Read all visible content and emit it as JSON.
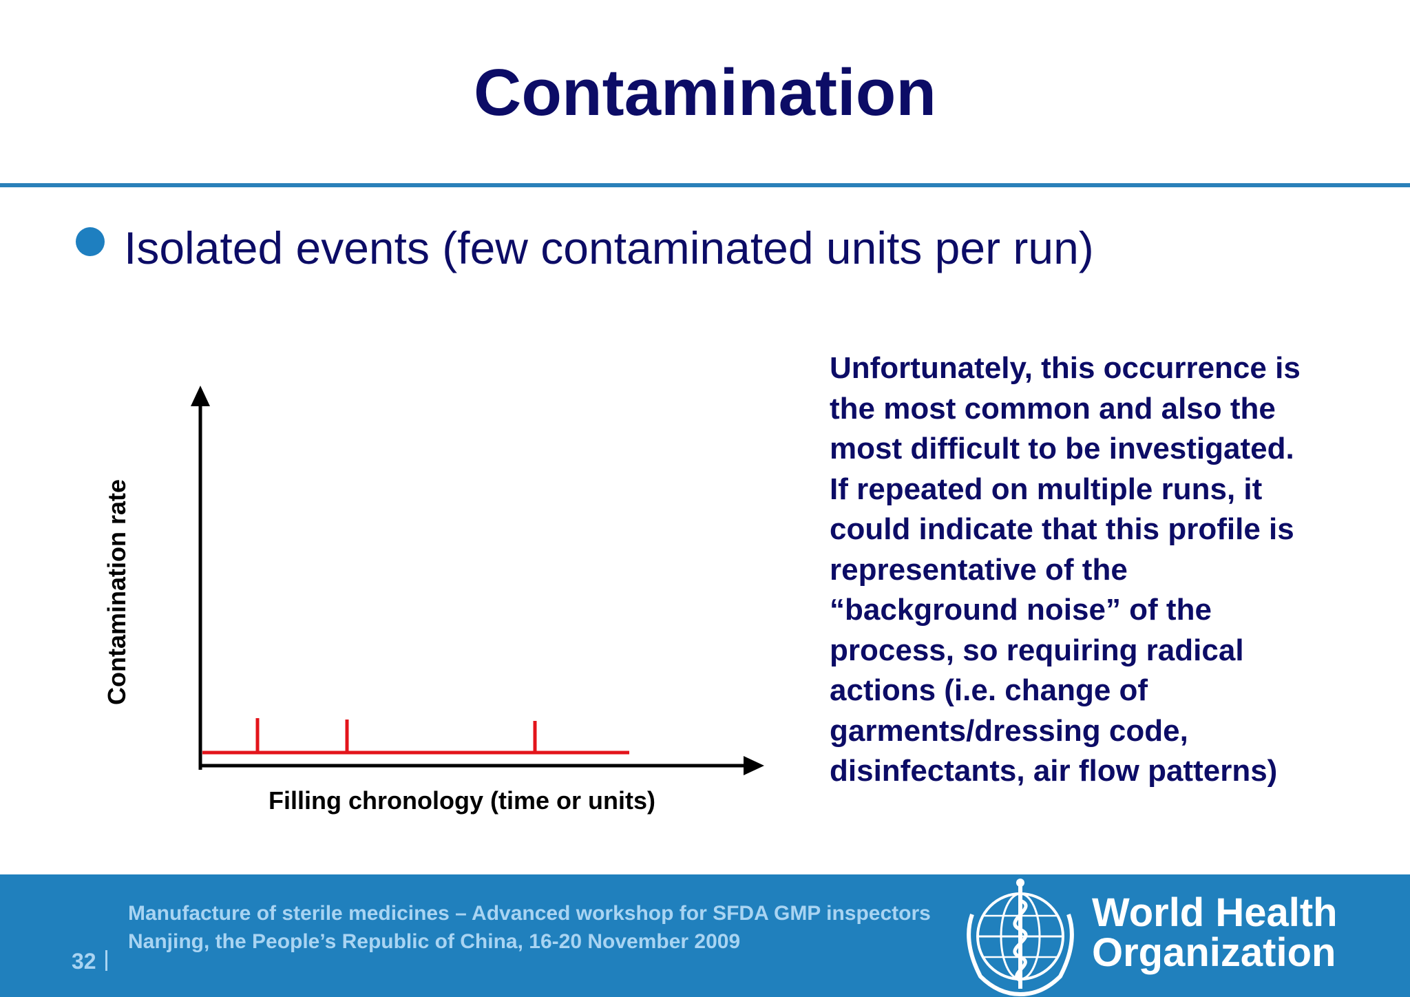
{
  "slide": {
    "title": "Contamination",
    "bullet": "Isolated events (few contaminated units per run)",
    "paragraph_lines": [
      "Unfortunately, this occurrence is",
      "the most common and also the",
      "most difficult to be investigated.",
      "If repeated on multiple runs, it",
      "could indicate that this profile is",
      "representative of the",
      "“background noise” of the",
      "process, so requiring radical",
      "actions (i.e. change of",
      "garments/dressing code,",
      "disinfectants, air flow patterns)"
    ]
  },
  "diagram": {
    "y_axis_label": "Contamination rate",
    "x_axis_label": "Filling chronology (time or units)",
    "baseline_color": "#e3141b",
    "spike_color": "#e3141b",
    "axis_color": "#000000",
    "spike_count": 3
  },
  "footer": {
    "line1": "Manufacture of sterile medicines – Advanced workshop for SFDA GMP inspectors",
    "line2": "Nanjing, the People’s Republic of China, 16-20 November 2009",
    "page_number": "32",
    "org_name_line1": "World Health",
    "org_name_line2": "Organization",
    "org_emblem": "who-emblem-icon",
    "background": "#2080bd"
  }
}
